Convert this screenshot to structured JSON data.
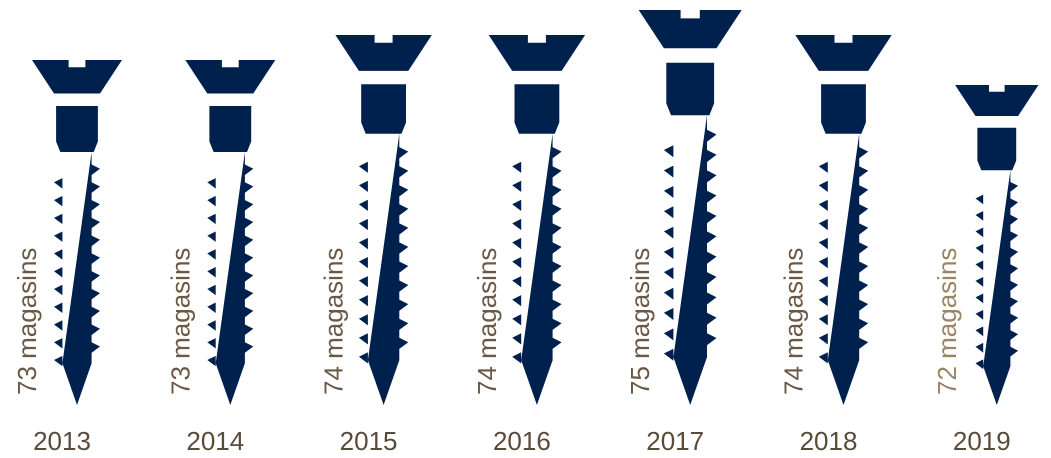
{
  "chart_data": {
    "type": "pictogram",
    "categories": [
      "2013",
      "2014",
      "2015",
      "2016",
      "2017",
      "2018",
      "2019"
    ],
    "values": [
      73,
      73,
      74,
      74,
      75,
      74,
      72
    ],
    "value_labels": [
      "73 magasins",
      "73 magasins",
      "74 magasins",
      "74 magasins",
      "75 magasins",
      "74 magasins",
      "72 magasins"
    ],
    "color": "#00214d",
    "label_colors": [
      "#6b5844",
      "#6b5844",
      "#6b5844",
      "#6b5844",
      "#6b5844",
      "#6b5844",
      "#9a8463"
    ]
  }
}
